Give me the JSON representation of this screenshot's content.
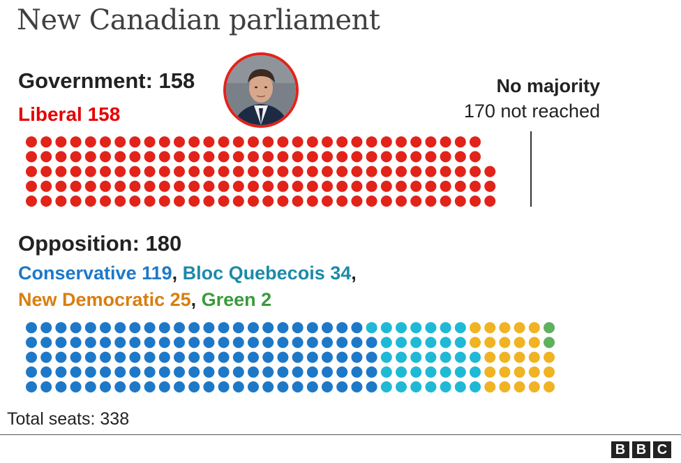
{
  "header": {
    "title": "New Canadian parliament"
  },
  "government": {
    "heading": "Government: 158",
    "party_label": "Liberal 158",
    "portrait_alt": "Justin Trudeau"
  },
  "majority": {
    "title": "No majority",
    "subtitle": "170 not reached"
  },
  "opposition": {
    "heading": "Opposition: 180",
    "parties": [
      {
        "label": "Conservative 119",
        "color": "#1e78c8"
      },
      {
        "label": "Bloc Quebecois 34",
        "color": "#1c8aa8"
      },
      {
        "label": "New Democratic 25",
        "color": "#d97e10"
      },
      {
        "label": "Green 2",
        "color": "#3a9a3a"
      }
    ]
  },
  "footer": {
    "total": "Total seats: 338",
    "logo": [
      "B",
      "B",
      "C"
    ]
  },
  "chart_data": {
    "type": "waffle",
    "total_seats": 338,
    "majority_threshold": 170,
    "rows_per_column": 5,
    "blocks": [
      {
        "name": "Government",
        "series": [
          {
            "name": "Liberal",
            "seats": 158,
            "color": "#e2231a"
          }
        ]
      },
      {
        "name": "Opposition",
        "series": [
          {
            "name": "Conservative",
            "seats": 119,
            "color": "#1e78c8"
          },
          {
            "name": "Bloc Quebecois",
            "seats": 34,
            "color": "#1fb9d6"
          },
          {
            "name": "New Democratic",
            "seats": 25,
            "color": "#f0b323"
          },
          {
            "name": "Green",
            "seats": 2,
            "color": "#5fb05f"
          }
        ]
      }
    ]
  }
}
